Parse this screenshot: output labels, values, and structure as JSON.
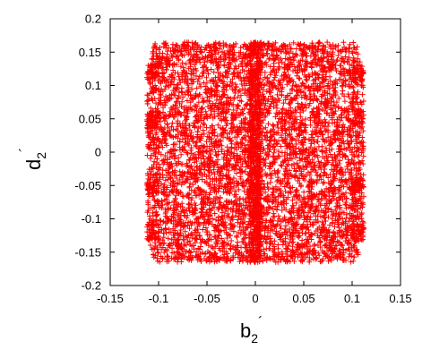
{
  "chart_data": {
    "type": "scatter",
    "xlabel_main": "b",
    "xlabel_sub": "2",
    "xlabel_prime": "´",
    "ylabel_main": "d",
    "ylabel_sub": "2",
    "ylabel_prime": "´",
    "xlim": [
      -0.15,
      0.15
    ],
    "ylim": [
      -0.2,
      0.2
    ],
    "xticks": [
      "-0.15",
      "-0.1",
      "-0.05",
      "0",
      "0.05",
      "0.1",
      "0.15"
    ],
    "yticks": [
      "-0.2",
      "-0.15",
      "-0.1",
      "-0.05",
      "0",
      "0.05",
      "0.1",
      "0.15",
      "0.2"
    ],
    "marker": "plus",
    "color": "#ff0000",
    "grid": false,
    "legend": "none",
    "region": {
      "x_range": [
        -0.112,
        0.112
      ],
      "y_range": [
        -0.165,
        0.165
      ]
    },
    "points": [
      [
        -0.11,
        0.12
      ],
      [
        -0.11,
        0.05
      ],
      [
        -0.11,
        -0.05
      ],
      [
        -0.11,
        -0.12
      ],
      [
        -0.1,
        0.13
      ],
      [
        -0.1,
        0.08
      ],
      [
        -0.1,
        0.0
      ],
      [
        -0.1,
        -0.08
      ],
      [
        -0.1,
        -0.13
      ],
      [
        -0.09,
        0.14
      ],
      [
        -0.09,
        0.1
      ],
      [
        -0.09,
        0.03
      ],
      [
        -0.09,
        -0.03
      ],
      [
        -0.09,
        -0.1
      ],
      [
        -0.09,
        -0.14
      ],
      [
        -0.08,
        0.15
      ],
      [
        -0.08,
        0.06
      ],
      [
        -0.08,
        -0.06
      ],
      [
        -0.08,
        -0.15
      ],
      [
        -0.07,
        0.16
      ],
      [
        -0.07,
        0.11
      ],
      [
        -0.07,
        0.02
      ],
      [
        -0.07,
        -0.02
      ],
      [
        -0.07,
        -0.11
      ],
      [
        -0.07,
        -0.16
      ],
      [
        -0.05,
        0.16
      ],
      [
        -0.05,
        0.09
      ],
      [
        -0.05,
        0.0
      ],
      [
        -0.05,
        -0.09
      ],
      [
        -0.05,
        -0.16
      ],
      [
        -0.03,
        0.16
      ],
      [
        -0.03,
        0.12
      ],
      [
        -0.03,
        0.04
      ],
      [
        -0.03,
        -0.04
      ],
      [
        -0.03,
        -0.12
      ],
      [
        -0.03,
        -0.16
      ],
      [
        -0.01,
        0.16
      ],
      [
        -0.01,
        0.07
      ],
      [
        -0.01,
        -0.07
      ],
      [
        -0.01,
        -0.16
      ],
      [
        0.0,
        0.165
      ],
      [
        0.0,
        0.1
      ],
      [
        0.0,
        0.05
      ],
      [
        0.0,
        0.0
      ],
      [
        0.0,
        -0.05
      ],
      [
        0.0,
        -0.1
      ],
      [
        0.0,
        -0.165
      ],
      [
        0.01,
        0.16
      ],
      [
        0.01,
        0.07
      ],
      [
        0.01,
        -0.07
      ],
      [
        0.01,
        -0.16
      ],
      [
        0.03,
        0.16
      ],
      [
        0.03,
        0.12
      ],
      [
        0.03,
        0.04
      ],
      [
        0.03,
        -0.04
      ],
      [
        0.03,
        -0.12
      ],
      [
        0.03,
        -0.16
      ],
      [
        0.05,
        0.16
      ],
      [
        0.05,
        0.09
      ],
      [
        0.05,
        0.0
      ],
      [
        0.05,
        -0.09
      ],
      [
        0.05,
        -0.16
      ],
      [
        0.07,
        0.16
      ],
      [
        0.07,
        0.11
      ],
      [
        0.07,
        0.02
      ],
      [
        0.07,
        -0.02
      ],
      [
        0.07,
        -0.11
      ],
      [
        0.07,
        -0.16
      ],
      [
        0.08,
        0.15
      ],
      [
        0.08,
        0.06
      ],
      [
        0.08,
        -0.06
      ],
      [
        0.08,
        -0.15
      ],
      [
        0.09,
        0.14
      ],
      [
        0.09,
        0.1
      ],
      [
        0.09,
        0.03
      ],
      [
        0.09,
        -0.03
      ],
      [
        0.09,
        -0.1
      ],
      [
        0.09,
        -0.14
      ],
      [
        0.1,
        0.13
      ],
      [
        0.1,
        0.08
      ],
      [
        0.1,
        0.0
      ],
      [
        0.1,
        -0.08
      ],
      [
        0.1,
        -0.13
      ],
      [
        0.11,
        0.12
      ],
      [
        0.11,
        0.05
      ],
      [
        0.11,
        -0.05
      ],
      [
        0.11,
        -0.12
      ]
    ]
  }
}
